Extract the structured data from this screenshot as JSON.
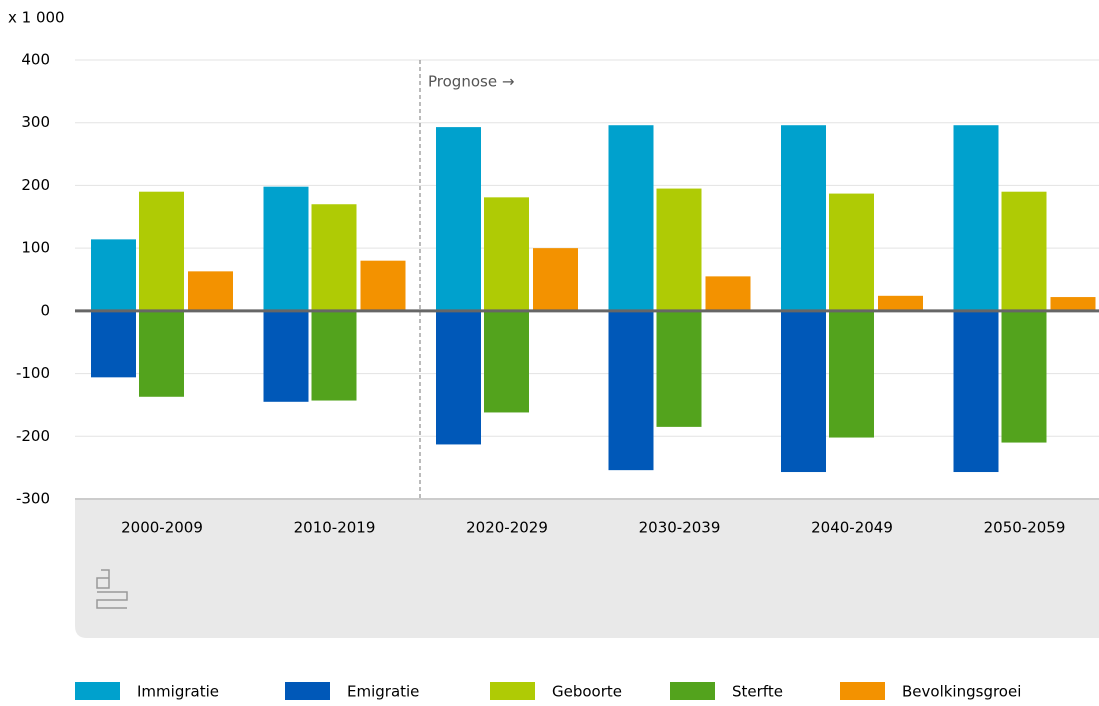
{
  "chart_data": {
    "type": "bar",
    "y_unit_label": "x 1 000",
    "annotation": "Prognose →",
    "categories": [
      "2000-2009",
      "2010-2019",
      "2020-2029",
      "2030-2039",
      "2040-2049",
      "2050-2059"
    ],
    "series": [
      {
        "name": "Immigratie",
        "color": "#00a1cd",
        "values": [
          114,
          198,
          293,
          296,
          296,
          296
        ]
      },
      {
        "name": "Emigratie",
        "color": "#0058b8",
        "values": [
          -106,
          -145,
          -213,
          -254,
          -257,
          -257
        ]
      },
      {
        "name": "Geboorte",
        "color": "#afcb05",
        "values": [
          190,
          170,
          181,
          195,
          187,
          190
        ]
      },
      {
        "name": "Sterfte",
        "color": "#53a31d",
        "values": [
          -137,
          -143,
          -162,
          -185,
          -202,
          -210
        ]
      },
      {
        "name": "Bevolkingsgroei",
        "color": "#f39200",
        "values": [
          63,
          80,
          100,
          55,
          24,
          22
        ]
      }
    ],
    "ylim": [
      -300,
      400
    ],
    "yticks": [
      -300,
      -200,
      -100,
      0,
      100,
      200,
      300,
      400
    ],
    "grid": true,
    "legend": "bottom"
  }
}
